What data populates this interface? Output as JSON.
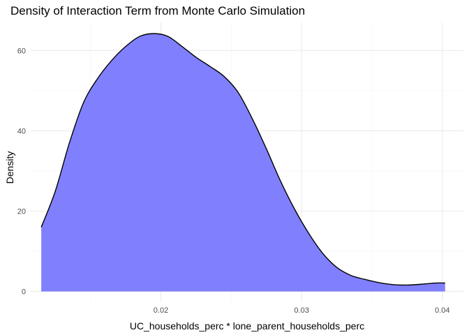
{
  "chart_data": {
    "type": "area",
    "title": "Density of Interaction Term from Monte Carlo Simulation",
    "xlabel": "UC_households_perc * lone_parent_households_perc",
    "ylabel": "Density",
    "xlim": [
      0.01075,
      0.0415
    ],
    "ylim": [
      -2.5,
      67
    ],
    "x_ticks": [
      0.02,
      0.03,
      0.04
    ],
    "x_tick_labels": [
      "0.02",
      "0.03",
      "0.04"
    ],
    "x_minor_ticks": [
      0.015,
      0.025,
      0.035
    ],
    "y_ticks": [
      0,
      20,
      40,
      60
    ],
    "y_tick_labels": [
      "0",
      "20",
      "40",
      "60"
    ],
    "y_minor_ticks": [
      10,
      30,
      50
    ],
    "grid": true,
    "fill_color": "#8080ff",
    "line_color": "#000000",
    "series": [
      {
        "x": [
          0.0115,
          0.0125,
          0.0135,
          0.0145,
          0.0155,
          0.0165,
          0.0175,
          0.0185,
          0.0195,
          0.0205,
          0.0215,
          0.0225,
          0.0235,
          0.0245,
          0.0255,
          0.0265,
          0.0275,
          0.0285,
          0.0295,
          0.0305,
          0.0315,
          0.0325,
          0.0335,
          0.0345,
          0.0355,
          0.0365,
          0.0375,
          0.0385,
          0.0395,
          0.0402
        ],
        "y": [
          16,
          25,
          37,
          47,
          53,
          57.5,
          61,
          63.5,
          64.2,
          63.5,
          61,
          58.3,
          56,
          53.5,
          49.5,
          43,
          35.5,
          27.5,
          20.5,
          14.5,
          9.5,
          6,
          4,
          3,
          2.2,
          1.7,
          1.6,
          1.8,
          2.1,
          2.1
        ]
      }
    ]
  }
}
